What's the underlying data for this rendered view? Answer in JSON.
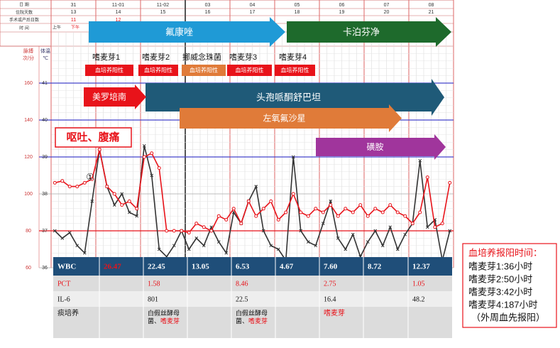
{
  "header": {
    "row_labels": [
      "日 期",
      "住院天数",
      "手术或产后日数",
      "时 间"
    ],
    "dates": [
      "31",
      "11-01",
      "11-02",
      "03",
      "04",
      "05",
      "06",
      "07",
      "08"
    ],
    "days": [
      "13",
      "14",
      "15",
      "16",
      "17",
      "18",
      "19",
      "20",
      "21"
    ],
    "op_days": [
      "11",
      "12"
    ],
    "time": [
      "上午",
      "下午"
    ]
  },
  "axis": {
    "pulse_label": [
      "脉搏",
      "次/分"
    ],
    "temp_label": [
      "体温",
      "℃"
    ],
    "pulse_ticks": [
      160,
      140,
      120,
      100,
      80,
      60
    ],
    "temp_ticks": [
      41,
      40,
      39,
      38,
      37,
      36
    ],
    "pulse_lim": [
      60,
      180
    ],
    "temp_lim": [
      36,
      42
    ]
  },
  "series": {
    "temperature": {
      "color": "#e8131a",
      "values": [
        38.3,
        38.35,
        38.2,
        38.2,
        38.3,
        38.4,
        39.2,
        38.2,
        38.0,
        37.7,
        37.8,
        37.6,
        39.0,
        39.1,
        38.7,
        37.0,
        37.0,
        37.0,
        36.95,
        37.2,
        37.1,
        37.0,
        37.4,
        37.3,
        37.6,
        37.2,
        37.8,
        37.4,
        37.6,
        37.8,
        37.3,
        37.5,
        38.0,
        37.5,
        37.4,
        37.6,
        37.5,
        37.7,
        37.4,
        37.6,
        37.5,
        37.7,
        37.4,
        37.6,
        37.5,
        37.7,
        37.5,
        37.4,
        37.2,
        37.5,
        38.45,
        37.1,
        37.2,
        38.3
      ]
    },
    "pulse": {
      "color": "#333333",
      "values": [
        80,
        76,
        79,
        72,
        68,
        96,
        124,
        104,
        94,
        100,
        90,
        88,
        126,
        110,
        70,
        66,
        72,
        80,
        70,
        76,
        72,
        82,
        74,
        68,
        90,
        84,
        96,
        104,
        80,
        72,
        70,
        64,
        120,
        80,
        74,
        72,
        84,
        96,
        76,
        70,
        78,
        66,
        74,
        80,
        72,
        82,
        70,
        78,
        84,
        118,
        82,
        86,
        64,
        80
      ]
    }
  },
  "drugs": [
    "氟康唑",
    "卡泊芬净",
    "美罗培南",
    "头孢哌酮舒巴坦",
    "左氧氟沙星",
    "磺胺"
  ],
  "cultures": [
    {
      "label": "嗜麦芽1",
      "result": "血培养阳性"
    },
    {
      "label": "嗜麦芽2",
      "result": "血培养阳性"
    },
    {
      "label": "挪威念珠菌",
      "result": "血培养阳性"
    },
    {
      "label": "嗜麦芽3",
      "result": "血培养阳性"
    },
    {
      "label": "嗜麦芽4",
      "result": "血培养阳性"
    }
  ],
  "annotations": {
    "symptom": "呕吐、腹痛",
    "marker": "①"
  },
  "table": {
    "rows": [
      [
        "WBC",
        "26.47",
        "22.45",
        "13.05",
        "6.53",
        "4.67",
        "7.60",
        "8.72",
        "12.37"
      ],
      [
        "PCT",
        "",
        "1.58",
        "",
        "8.46",
        "",
        "2.75",
        "",
        "1.05"
      ],
      [
        "IL-6",
        "",
        "801",
        "",
        "22.5",
        "",
        "16.4",
        "",
        "48.2"
      ],
      [
        "痰培养",
        "",
        "白假丝酵母菌、嗜麦芽",
        "",
        "白假丝酵母菌、嗜麦芽",
        "",
        "嗜麦芽",
        "",
        ""
      ]
    ]
  },
  "sidebox": {
    "title": "血培养报阳时间：",
    "lines": [
      "嗜麦芽1:36小时",
      "嗜麦芽2:50小时",
      "嗜麦芽3:42小时",
      "嗜麦芽4:187小时",
      "（外周血先报阳）"
    ]
  }
}
